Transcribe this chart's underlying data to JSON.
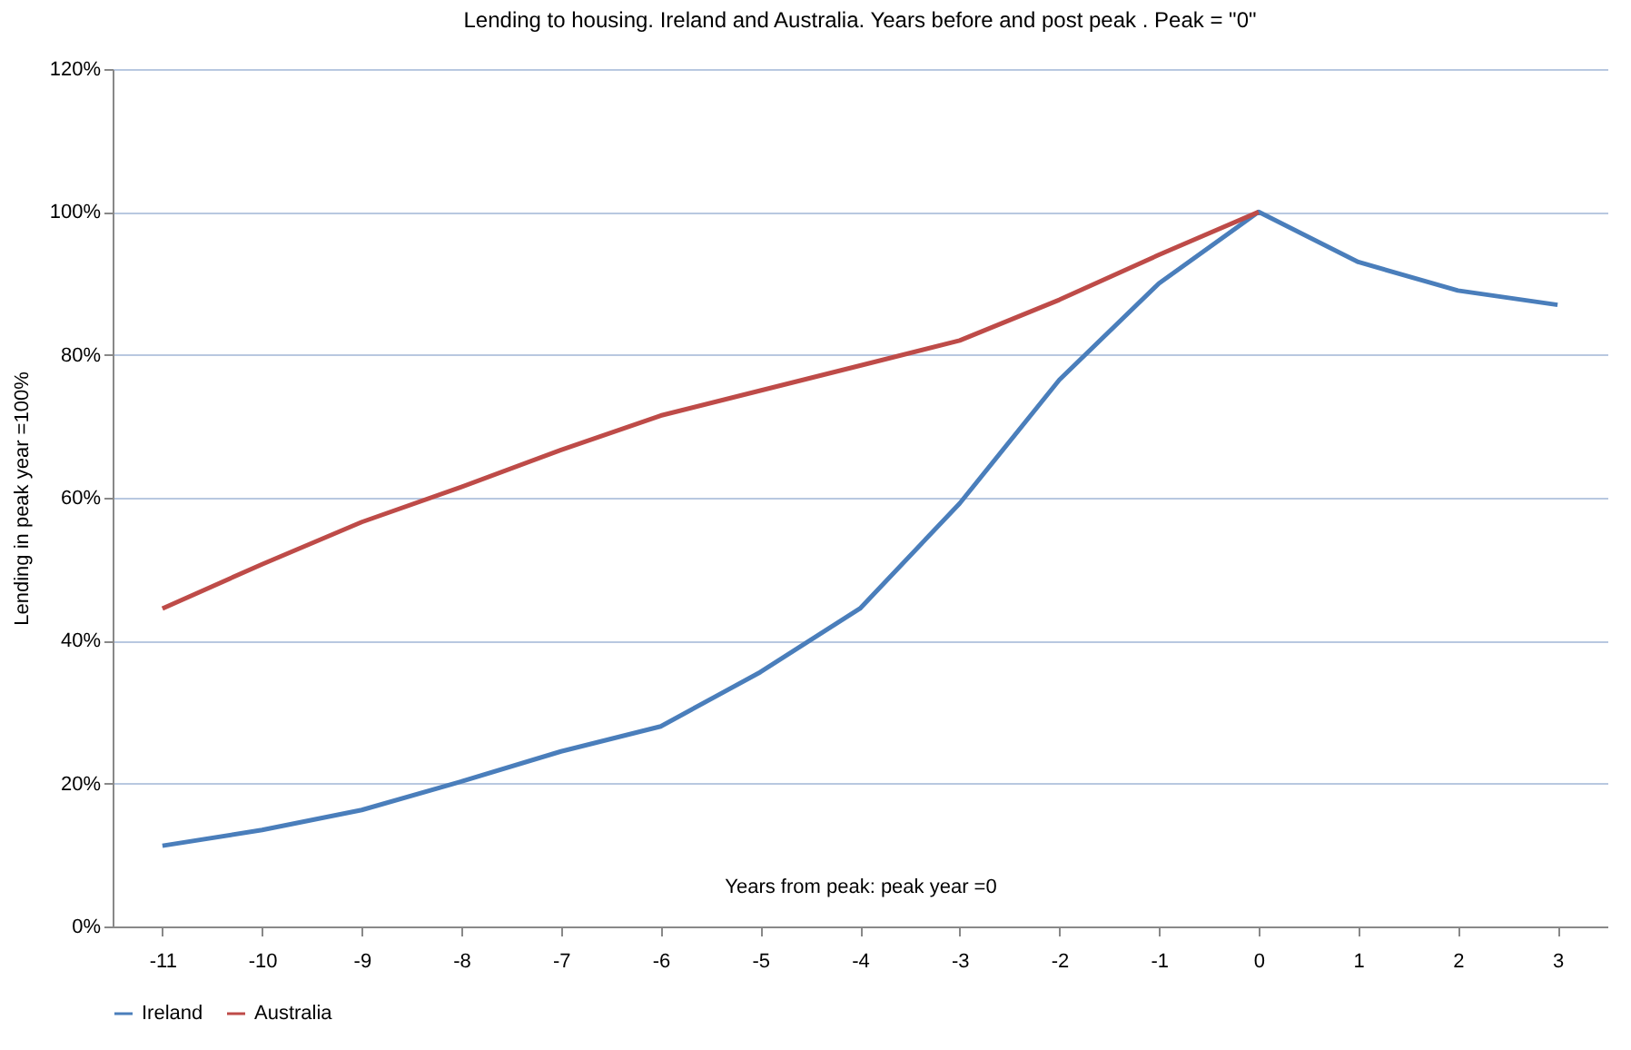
{
  "chart_data": {
    "type": "line",
    "title": "Lending to housing. Ireland and Australia. Years before and post peak . Peak = \"0\"",
    "xlabel": "Years from peak: peak year =0",
    "ylabel": "Lending in peak year =100%",
    "categories": [
      "-11",
      "-10",
      "-9",
      "-8",
      "-7",
      "-6",
      "-5",
      "-4",
      "-3",
      "-2",
      "-1",
      "0",
      "1",
      "2",
      "3"
    ],
    "series": [
      {
        "name": "Ireland",
        "color": "#4a7ebb",
        "values": [
          11.3,
          13.5,
          16.3,
          20.3,
          24.5,
          28,
          35.6,
          44.5,
          59.2,
          76.5,
          90,
          100,
          93,
          89,
          87
        ]
      },
      {
        "name": "Australia",
        "color": "#be4b48",
        "values": [
          44.5,
          50.7,
          56.6,
          61.5,
          66.7,
          71.5,
          75,
          78.5,
          82,
          87.7,
          94,
          100,
          null,
          null,
          null
        ]
      }
    ],
    "ylim": [
      0,
      120
    ],
    "yticks": [
      {
        "value": 0,
        "label": "0%"
      },
      {
        "value": 20,
        "label": "20%"
      },
      {
        "value": 40,
        "label": "40%"
      },
      {
        "value": 60,
        "label": "60%"
      },
      {
        "value": 80,
        "label": "80%"
      },
      {
        "value": 100,
        "label": "100%"
      },
      {
        "value": 120,
        "label": "120%"
      }
    ],
    "grid": "y",
    "legend": "bottom",
    "marker": "none",
    "line_style": "solid"
  }
}
